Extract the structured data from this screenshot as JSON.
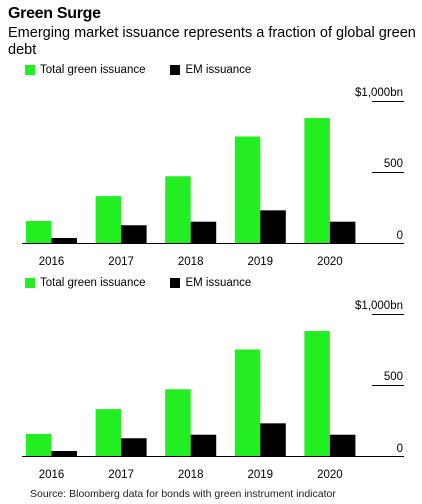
{
  "title": "Green Surge",
  "subtitle": "Emerging market issuance represents a fraction of global green debt",
  "source": "Source: Bloomberg data for bonds with green instrument indicator",
  "colors": {
    "total": "#22ee22",
    "em": "#000000"
  },
  "chart_data": [
    {
      "type": "bar",
      "categories": [
        "2016",
        "2017",
        "2018",
        "2019",
        "2020"
      ],
      "series": [
        {
          "name": "Total green issuance",
          "values": [
            155,
            330,
            470,
            750,
            880
          ]
        },
        {
          "name": "EM issuance",
          "values": [
            35,
            125,
            150,
            230,
            150
          ]
        }
      ],
      "ylim": [
        0,
        1000
      ],
      "yticks": [
        0,
        500,
        1000
      ],
      "ytick_labels": [
        "0",
        "500",
        "$1,000bn"
      ],
      "legend": "top-left"
    },
    {
      "type": "bar",
      "categories": [
        "2016",
        "2017",
        "2018",
        "2019",
        "2020"
      ],
      "series": [
        {
          "name": "Total green issuance",
          "values": [
            155,
            330,
            470,
            750,
            880
          ]
        },
        {
          "name": "EM issuance",
          "values": [
            35,
            125,
            150,
            230,
            150
          ]
        }
      ],
      "ylim": [
        0,
        1000
      ],
      "yticks": [
        0,
        500,
        1000
      ],
      "ytick_labels": [
        "0",
        "500",
        "$1,000bn"
      ],
      "legend": "top-left"
    }
  ]
}
